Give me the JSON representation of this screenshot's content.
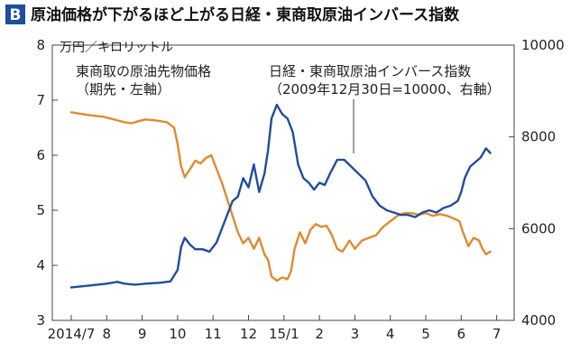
{
  "header": {
    "badge": "B",
    "title": "原油価格が下がるほど上がる日経・東商取原油インバース指数"
  },
  "chart_data": {
    "type": "line",
    "title": "原油価格が下がるほど上がる日経・東商取原油インバース指数",
    "left_axis": {
      "unit_label": "万円／キロリットル",
      "ylim": [
        3,
        8
      ],
      "ticks": [
        3,
        4,
        5,
        6,
        7,
        8
      ]
    },
    "right_axis": {
      "ylim": [
        4000,
        10000
      ],
      "ticks": [
        4000,
        6000,
        8000,
        10000
      ]
    },
    "x_ticks": [
      "2014/7",
      "8",
      "9",
      "10",
      "11",
      "12",
      "15/1",
      "2",
      "3",
      "4",
      "5",
      "6",
      "7"
    ],
    "grid": false,
    "series": [
      {
        "name": "東商取の原油先物価格",
        "sub": "（期先・左軸）",
        "axis": "left",
        "color": "#E08A2E",
        "points": [
          [
            0.0,
            6.78
          ],
          [
            0.3,
            6.75
          ],
          [
            0.6,
            6.72
          ],
          [
            0.9,
            6.7
          ],
          [
            1.2,
            6.65
          ],
          [
            1.5,
            6.6
          ],
          [
            1.7,
            6.58
          ],
          [
            1.9,
            6.62
          ],
          [
            2.1,
            6.65
          ],
          [
            2.4,
            6.63
          ],
          [
            2.7,
            6.6
          ],
          [
            2.9,
            6.5
          ],
          [
            3.0,
            6.2
          ],
          [
            3.1,
            5.8
          ],
          [
            3.2,
            5.6
          ],
          [
            3.35,
            5.75
          ],
          [
            3.5,
            5.9
          ],
          [
            3.65,
            5.85
          ],
          [
            3.8,
            5.95
          ],
          [
            3.95,
            6.0
          ],
          [
            4.1,
            5.75
          ],
          [
            4.25,
            5.5
          ],
          [
            4.4,
            5.2
          ],
          [
            4.55,
            4.9
          ],
          [
            4.7,
            4.6
          ],
          [
            4.85,
            4.4
          ],
          [
            5.0,
            4.5
          ],
          [
            5.15,
            4.3
          ],
          [
            5.3,
            4.5
          ],
          [
            5.45,
            4.2
          ],
          [
            5.55,
            4.1
          ],
          [
            5.65,
            3.8
          ],
          [
            5.8,
            3.72
          ],
          [
            5.95,
            3.78
          ],
          [
            6.1,
            3.75
          ],
          [
            6.2,
            3.9
          ],
          [
            6.3,
            4.3
          ],
          [
            6.45,
            4.6
          ],
          [
            6.6,
            4.4
          ],
          [
            6.75,
            4.65
          ],
          [
            6.9,
            4.75
          ],
          [
            7.05,
            4.7
          ],
          [
            7.2,
            4.72
          ],
          [
            7.35,
            4.55
          ],
          [
            7.5,
            4.3
          ],
          [
            7.65,
            4.25
          ],
          [
            7.85,
            4.45
          ],
          [
            8.0,
            4.3
          ],
          [
            8.2,
            4.45
          ],
          [
            8.4,
            4.5
          ],
          [
            8.6,
            4.55
          ],
          [
            8.8,
            4.7
          ],
          [
            9.0,
            4.8
          ],
          [
            9.2,
            4.9
          ],
          [
            9.4,
            4.95
          ],
          [
            9.6,
            4.95
          ],
          [
            9.8,
            4.92
          ],
          [
            10.0,
            4.95
          ],
          [
            10.2,
            4.9
          ],
          [
            10.4,
            4.93
          ],
          [
            10.6,
            4.9
          ],
          [
            10.8,
            4.85
          ],
          [
            10.95,
            4.8
          ],
          [
            11.05,
            4.6
          ],
          [
            11.2,
            4.35
          ],
          [
            11.35,
            4.5
          ],
          [
            11.5,
            4.45
          ],
          [
            11.6,
            4.3
          ],
          [
            11.7,
            4.2
          ],
          [
            11.82,
            4.25
          ]
        ]
      },
      {
        "name": "日経・東商取原油インバース指数",
        "sub": "（2009年12月30日=10000、右軸）",
        "axis": "right",
        "color": "#1F4E9C",
        "points": [
          [
            0.0,
            4720
          ],
          [
            0.5,
            4760
          ],
          [
            1.0,
            4800
          ],
          [
            1.3,
            4840
          ],
          [
            1.5,
            4800
          ],
          [
            1.8,
            4780
          ],
          [
            2.1,
            4800
          ],
          [
            2.5,
            4820
          ],
          [
            2.8,
            4850
          ],
          [
            3.0,
            5100
          ],
          [
            3.1,
            5600
          ],
          [
            3.2,
            5800
          ],
          [
            3.35,
            5650
          ],
          [
            3.5,
            5550
          ],
          [
            3.7,
            5550
          ],
          [
            3.9,
            5500
          ],
          [
            4.1,
            5700
          ],
          [
            4.25,
            6000
          ],
          [
            4.4,
            6300
          ],
          [
            4.55,
            6600
          ],
          [
            4.7,
            6700
          ],
          [
            4.85,
            7100
          ],
          [
            5.0,
            6900
          ],
          [
            5.15,
            7400
          ],
          [
            5.3,
            6800
          ],
          [
            5.45,
            7200
          ],
          [
            5.55,
            7700
          ],
          [
            5.65,
            8400
          ],
          [
            5.8,
            8700
          ],
          [
            5.95,
            8500
          ],
          [
            6.1,
            8400
          ],
          [
            6.25,
            8100
          ],
          [
            6.4,
            7400
          ],
          [
            6.55,
            7100
          ],
          [
            6.7,
            7000
          ],
          [
            6.85,
            6850
          ],
          [
            7.0,
            7000
          ],
          [
            7.15,
            6950
          ],
          [
            7.3,
            7200
          ],
          [
            7.5,
            7500
          ],
          [
            7.7,
            7500
          ],
          [
            7.9,
            7350
          ],
          [
            8.1,
            7200
          ],
          [
            8.3,
            7050
          ],
          [
            8.5,
            6700
          ],
          [
            8.7,
            6500
          ],
          [
            8.9,
            6400
          ],
          [
            9.1,
            6350
          ],
          [
            9.3,
            6300
          ],
          [
            9.5,
            6300
          ],
          [
            9.7,
            6250
          ],
          [
            9.9,
            6350
          ],
          [
            10.1,
            6400
          ],
          [
            10.3,
            6350
          ],
          [
            10.5,
            6450
          ],
          [
            10.7,
            6500
          ],
          [
            10.9,
            6600
          ],
          [
            11.0,
            6800
          ],
          [
            11.1,
            7100
          ],
          [
            11.25,
            7350
          ],
          [
            11.4,
            7450
          ],
          [
            11.55,
            7550
          ],
          [
            11.7,
            7750
          ],
          [
            11.82,
            7650
          ]
        ]
      }
    ]
  }
}
